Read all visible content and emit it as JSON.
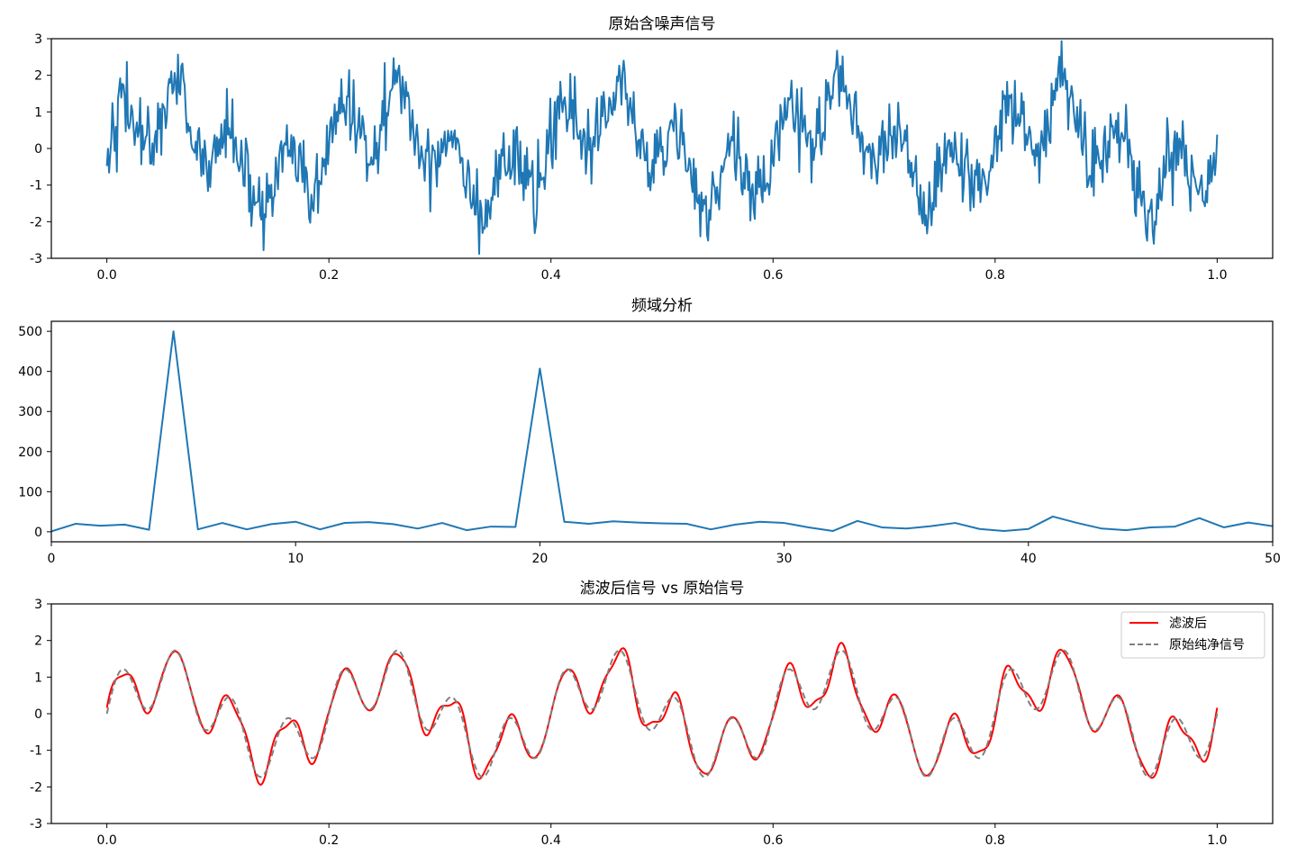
{
  "chart_data": [
    {
      "type": "line",
      "title": "原始含噪声信号",
      "xlabel": "",
      "ylabel": "",
      "xlim": [
        -0.05,
        1.05
      ],
      "ylim": [
        -3,
        3
      ],
      "xticks": [
        "0.0",
        "0.2",
        "0.4",
        "0.6",
        "0.8",
        "1.0"
      ],
      "yticks": [
        "-3",
        "-2",
        "-1",
        "0",
        "1",
        "2",
        "3"
      ],
      "grid": false,
      "series": [
        {
          "color": "#1f77b4",
          "signal": {
            "t_start": 0.0,
            "t_end": 1.0,
            "points": 1000,
            "components": [
              {
                "amplitude": 1.0,
                "frequency": 5
              },
              {
                "amplitude": 0.8,
                "frequency": 20
              }
            ],
            "noise_std": 0.5
          }
        }
      ]
    },
    {
      "type": "line",
      "title": "频域分析",
      "xlabel": "",
      "ylabel": "",
      "xlim": [
        0,
        50
      ],
      "ylim": [
        -25,
        525
      ],
      "xticks": [
        "0",
        "10",
        "20",
        "30",
        "40",
        "50"
      ],
      "yticks": [
        "0",
        "100",
        "200",
        "300",
        "400",
        "500"
      ],
      "grid": false,
      "series": [
        {
          "color": "#1f77b4",
          "x": [
            0,
            1,
            2,
            3,
            4,
            5,
            6,
            7,
            8,
            9,
            10,
            11,
            12,
            13,
            14,
            15,
            16,
            17,
            18,
            19,
            20,
            21,
            22,
            23,
            24,
            25,
            26,
            27,
            28,
            29,
            30,
            31,
            32,
            33,
            34,
            35,
            36,
            37,
            38,
            39,
            40,
            41,
            42,
            43,
            44,
            45,
            46,
            47,
            48,
            49,
            50
          ],
          "values": [
            1,
            20,
            15,
            18,
            5,
            500,
            6,
            22,
            6,
            19,
            25,
            6,
            22,
            24,
            19,
            8,
            22,
            4,
            13,
            12,
            407,
            25,
            20,
            26,
            23,
            21,
            20,
            6,
            18,
            25,
            22,
            11,
            2,
            27,
            11,
            8,
            14,
            22,
            7,
            2,
            7,
            38,
            22,
            8,
            4,
            11,
            13,
            34,
            11,
            23,
            14
          ]
        }
      ]
    },
    {
      "type": "line",
      "title": "滤波后信号 vs 原始信号",
      "xlabel": "",
      "ylabel": "",
      "xlim": [
        -0.05,
        1.05
      ],
      "ylim": [
        -3,
        3
      ],
      "xticks": [
        "0.0",
        "0.2",
        "0.4",
        "0.6",
        "0.8",
        "1.0"
      ],
      "yticks": [
        "-3",
        "-2",
        "-1",
        "0",
        "1",
        "2",
        "3"
      ],
      "grid": false,
      "legend_position": "upper right",
      "series": [
        {
          "name": "滤波后",
          "color": "#ff0000",
          "style": "solid",
          "signal": {
            "t_start": 0.0,
            "t_end": 1.0,
            "points": 1000,
            "components": [
              {
                "amplitude": 1.0,
                "frequency": 5
              },
              {
                "amplitude": 0.8,
                "frequency": 20
              }
            ],
            "ripple": 0.12
          }
        },
        {
          "name": "原始纯净信号",
          "color": "#808080",
          "style": "dashed",
          "signal": {
            "t_start": 0.0,
            "t_end": 1.0,
            "points": 1000,
            "components": [
              {
                "amplitude": 1.0,
                "frequency": 5
              },
              {
                "amplitude": 0.8,
                "frequency": 20
              }
            ]
          }
        }
      ]
    }
  ]
}
